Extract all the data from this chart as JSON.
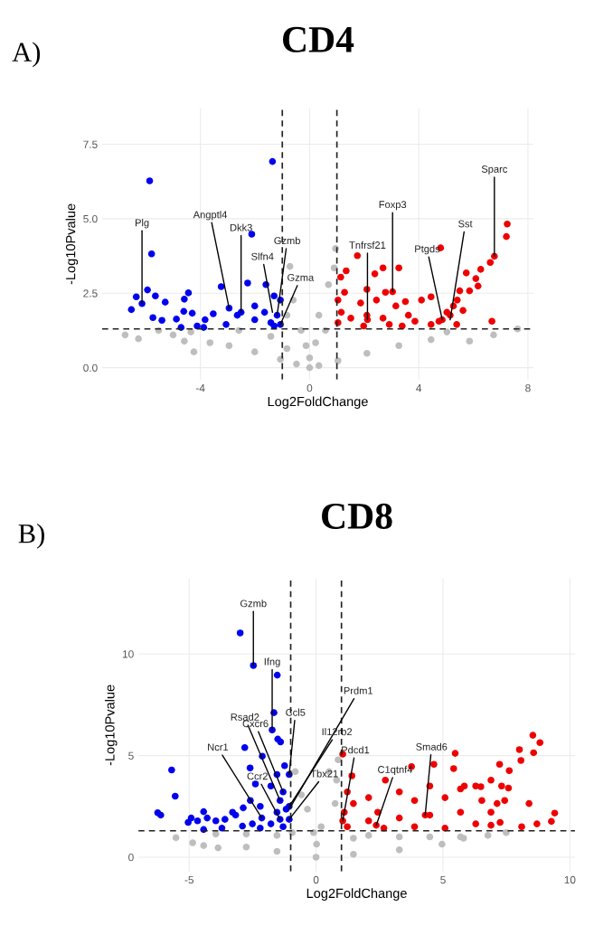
{
  "chart_data": [
    {
      "type": "scatter",
      "title": "CD4",
      "xlabel": "Log2FoldChange",
      "ylabel": "-Log10Pvalue",
      "xlim": [
        -7.6,
        8.2
      ],
      "ylim": [
        -0.4,
        8.7
      ],
      "xticks": [
        -4,
        0,
        4,
        8
      ],
      "yticks": [
        {
          "value": 0,
          "label": "0.0"
        },
        {
          "value": 2.5,
          "label": "2.5"
        },
        {
          "value": 5,
          "label": "5.0"
        },
        {
          "value": 7.5,
          "label": "7.5"
        }
      ],
      "grid": true,
      "marker": "circle",
      "ref_lines": [
        {
          "axis": "x",
          "value": -1,
          "color": "#222222",
          "line_style": "dashed"
        },
        {
          "axis": "x",
          "value": 1,
          "color": "#222222",
          "line_style": "dashed"
        },
        {
          "axis": "y",
          "value": 1.3,
          "color": "#222222",
          "line_style": "dashed"
        }
      ],
      "series": [
        {
          "color": "#bebebe",
          "x": [
            -6.76,
            -6.27,
            -5.53,
            -5.0,
            -4.59,
            -4.35,
            -4.24,
            -3.65,
            -2.95,
            -2.59,
            -2.01,
            -1.42,
            -1.07,
            -0.83,
            -0.83,
            -0.72,
            -0.6,
            -0.48,
            -0.31,
            -0.13,
            0,
            0,
            0.22,
            0.34,
            0.34,
            0.58,
            0.69,
            0.9,
            0.95,
            1.04,
            2.1,
            3.27,
            4.45,
            5.03,
            5.86,
            6.74,
            7.62
          ],
          "values": [
            1.1,
            0.97,
            1.25,
            1.1,
            0.89,
            1.2,
            0.53,
            0.84,
            0.74,
            1.25,
            0.53,
            1.05,
            0.28,
            1.76,
            0.64,
            3.4,
            2.27,
            0.12,
            1.25,
            0.74,
            0.33,
            0,
            0.84,
            0.07,
            1.76,
            1.25,
            2.79,
            3.35,
            4.0,
            0.23,
            0.48,
            0.74,
            0.94,
            1.2,
            0.89,
            1.1,
            1.3
          ]
        },
        {
          "color": "#0000ee",
          "x": [
            -5.86,
            -1.36,
            -2.12,
            -5.79,
            -6.35,
            -6.14,
            -5.94,
            -5.65,
            -6.53,
            -5.74,
            -5.29,
            -5.41,
            -4.44,
            -4.59,
            -4.61,
            -4.88,
            -4.71,
            -4.3,
            -4.12,
            -3.83,
            -3.53,
            -3.24,
            -2.95,
            -3.06,
            -2.27,
            -2.65,
            -2.01,
            -2.01,
            -1.6,
            -1.65,
            -1.42,
            -1.3,
            -1.07,
            -1.19,
            -1.07,
            -1.3,
            -3.88,
            -2.51
          ],
          "values": [
            6.27,
            6.92,
            4.48,
            3.82,
            2.38,
            2.15,
            2.61,
            2.41,
            1.95,
            1.68,
            2.2,
            1.59,
            2.51,
            2.3,
            1.89,
            1.63,
            1.35,
            1.83,
            1.4,
            1.61,
            1.81,
            2.72,
            2.0,
            1.45,
            2.84,
            1.76,
            2.07,
            1.61,
            2.79,
            1.86,
            1.51,
            2.41,
            2.27,
            1.76,
            1.45,
            1.4,
            1.35,
            1.86
          ]
        },
        {
          "color": "#ee0000",
          "x": [
            7.24,
            7.21,
            6.77,
            6.62,
            4.8,
            3.27,
            2.69,
            1.75,
            1.34,
            1.14,
            2.39,
            2.1,
            3.04,
            2.78,
            6.27,
            6.09,
            6.17,
            5.74,
            5.86,
            5.5,
            5.41,
            5.27,
            6.68,
            4.45,
            5.03,
            4.74,
            5.39,
            4.1,
            3.51,
            3.62,
            3.16,
            2.45,
            1.87,
            1.28,
            1.04,
            1.16,
            1.51,
            1.04,
            2.1,
            2.69,
            2.92,
            3.86,
            4.45,
            5.15,
            5.62,
            3.39,
            1.98,
            2.12,
            4.86
          ],
          "values": [
            4.82,
            4.4,
            3.74,
            3.53,
            4.02,
            3.35,
            3.35,
            3.76,
            3.25,
            3.04,
            3.15,
            2.63,
            2.55,
            2.53,
            3.3,
            2.99,
            2.74,
            3.18,
            2.58,
            2.58,
            2.27,
            2.07,
            1.56,
            2.38,
            1.86,
            1.56,
            1.45,
            2.27,
            2.22,
            1.76,
            2.07,
            2.27,
            2.17,
            2.53,
            2.27,
            1.86,
            1.66,
            1.51,
            1.76,
            1.66,
            1.45,
            1.56,
            1.45,
            1.76,
            1.92,
            1.4,
            1.4,
            1.61,
            1.61
          ]
        }
      ],
      "annotations": [
        "A)",
        {
          "text": "Plg",
          "x": -6.14,
          "y": 2.15
        },
        {
          "text": "Angptl4",
          "x": -2.95,
          "y": 2.0
        },
        {
          "text": "Dkk3",
          "x": -2.51,
          "y": 1.86
        },
        {
          "text": "Gzmb",
          "x": -1.19,
          "y": 1.76
        },
        {
          "text": "Slfn4",
          "x": -1.36,
          "y": 1.86
        },
        {
          "text": "Gzma",
          "x": -1.07,
          "y": 1.45
        },
        {
          "text": "Tnfrsf21",
          "x": 2.12,
          "y": 1.61
        },
        {
          "text": "Foxp3",
          "x": 3.04,
          "y": 2.55
        },
        {
          "text": "Ptgds",
          "x": 4.86,
          "y": 1.61
        },
        {
          "text": "Sst",
          "x": 5.15,
          "y": 1.61
        },
        {
          "text": "Sparc",
          "x": 6.77,
          "y": 3.74
        }
      ]
    },
    {
      "type": "scatter",
      "title": "CD8",
      "xlabel": "Log2FoldChange",
      "ylabel": "-Log10Pvalue",
      "xlim": [
        -7.0,
        10.2
      ],
      "ylim": [
        -0.7,
        13.7
      ],
      "xticks": [
        -5,
        0,
        5,
        10
      ],
      "yticks": [
        0,
        5,
        10
      ],
      "grid": true,
      "marker": "circle",
      "ref_lines": [
        {
          "axis": "x",
          "value": -1,
          "color": "#222222",
          "line_style": "dashed"
        },
        {
          "axis": "x",
          "value": 1,
          "color": "#222222",
          "line_style": "dashed"
        },
        {
          "axis": "y",
          "value": 1.3,
          "color": "#222222",
          "line_style": "dashed"
        }
      ],
      "series": [
        {
          "color": "#bebebe",
          "x": [
            -5.52,
            -4.86,
            -4.43,
            -3.95,
            -3.86,
            -2.75,
            -2.75,
            -1.54,
            -1.54,
            -0.94,
            -0.82,
            -0.58,
            -0.34,
            -0.1,
            0,
            0.02,
            0.2,
            0.51,
            0.75,
            0.81,
            0.87,
            1.47,
            1.47,
            2.07,
            3.28,
            3.28,
            4.48,
            4.96,
            5.69,
            5.81,
            6.77,
            7.49
          ],
          "values": [
            0.96,
            0.71,
            0.57,
            1.14,
            0.46,
            0.5,
            1.14,
            0.29,
            1.07,
            1.21,
            4.21,
            3.07,
            2.36,
            1.21,
            0,
            0.64,
            1.5,
            4.21,
            2.64,
            3.79,
            4.79,
            0.14,
            0.93,
            1.07,
            0.36,
            1.0,
            1.0,
            0.64,
            1.0,
            0.93,
            1.07,
            1.21
          ]
        },
        {
          "color": "#0000ee",
          "x": [
            -2.99,
            -2.47,
            -1.53,
            -1.66,
            -1.73,
            -1.51,
            -1.4,
            -2.81,
            -2.12,
            -2.6,
            -5.69,
            -5.55,
            -6.24,
            -6.12,
            -1.24,
            -1.54,
            -1.06,
            -1.78,
            -2.39,
            -1.3,
            -2.59,
            -2.87,
            -2.2,
            -4.43,
            -4.92,
            -5.04,
            -4.67,
            -4.29,
            -3.95,
            -3.59,
            -3.29,
            -3.17,
            -2.9,
            -3.71,
            -4.43,
            -2.51,
            -1.54,
            -1.18,
            -1.78,
            -1.3,
            -2.2,
            -1.42,
            -1.06,
            -2.14,
            -1.42,
            -1.06
          ],
          "values": [
            11.03,
            9.43,
            8.96,
            7.11,
            6.26,
            5.81,
            5.67,
            5.39,
            4.97,
            4.39,
            4.29,
            3.0,
            2.19,
            2.07,
            4.5,
            4.07,
            4.07,
            3.5,
            3.6,
            3.21,
            2.79,
            2.43,
            2.5,
            2.24,
            1.93,
            1.71,
            1.79,
            1.93,
            1.79,
            1.86,
            2.21,
            2.07,
            1.53,
            1.43,
            1.36,
            1.64,
            2.21,
            2.36,
            1.64,
            1.5,
            1.43,
            2.79,
            2.5,
            1.93,
            1.86,
            1.86
          ]
        },
        {
          "color": "#ee0000",
          "x": [
            8.54,
            8.82,
            8.01,
            8.57,
            8.07,
            5.48,
            5.42,
            4.64,
            3.76,
            7.23,
            7.61,
            1.05,
            1.41,
            2.73,
            6.89,
            7.31,
            7.58,
            8.39,
            9.4,
            9.27,
            8.7,
            6.89,
            7.25,
            8.1,
            1.23,
            1.47,
            2.07,
            2.43,
            3.28,
            3.88,
            4.48,
            5.08,
            5.69,
            6.29,
            6.53,
            7.13,
            7.43,
            6.89,
            5.69,
            4.48,
            3.28,
            2.07,
            1.23,
            2.67,
            3.88,
            5.08,
            6.29,
            1.11,
            5.84,
            6.49,
            1.05,
            2.37,
            4.3
          ],
          "values": [
            6.0,
            5.64,
            5.29,
            5.14,
            4.76,
            5.11,
            4.36,
            4.57,
            4.46,
            4.57,
            4.26,
            5.07,
            4.0,
            3.79,
            3.79,
            3.5,
            3.4,
            2.64,
            2.17,
            1.76,
            1.64,
            1.57,
            1.71,
            1.5,
            3.21,
            2.64,
            2.93,
            2.21,
            3.21,
            2.79,
            3.5,
            2.93,
            3.36,
            3.5,
            2.79,
            2.64,
            2.79,
            2.21,
            2.21,
            2.07,
            1.93,
            1.79,
            1.5,
            1.43,
            1.5,
            1.43,
            1.64,
            2.21,
            3.5,
            3.47,
            1.79,
            1.57,
            2.07
          ]
        }
      ],
      "annotations": [
        "B)",
        {
          "text": "Gzmb",
          "x": -2.47,
          "y": 9.43
        },
        {
          "text": "Ifng",
          "x": -1.73,
          "y": 6.26
        },
        {
          "text": "Ccl5",
          "x": -1.06,
          "y": 4.07
        },
        {
          "text": "Prdm1",
          "x": -1.06,
          "y": 2.36
        },
        {
          "text": "Rsad2",
          "x": -1.42,
          "y": 2.79
        },
        {
          "text": "Il12rb2",
          "x": -1.06,
          "y": 2.5
        },
        {
          "text": "Ncr1",
          "x": -2.14,
          "y": 1.93
        },
        {
          "text": "Cxcr6",
          "x": -1.3,
          "y": 3.21
        },
        {
          "text": "Ccr2",
          "x": -1.42,
          "y": 1.86
        },
        {
          "text": "Tbx21",
          "x": -1.06,
          "y": 1.86
        },
        {
          "text": "Pdcd1",
          "x": 1.05,
          "y": 1.79
        },
        {
          "text": "C1qtnf4",
          "x": 2.37,
          "y": 1.57
        },
        {
          "text": "Smad6",
          "x": 4.3,
          "y": 2.07
        }
      ]
    }
  ]
}
